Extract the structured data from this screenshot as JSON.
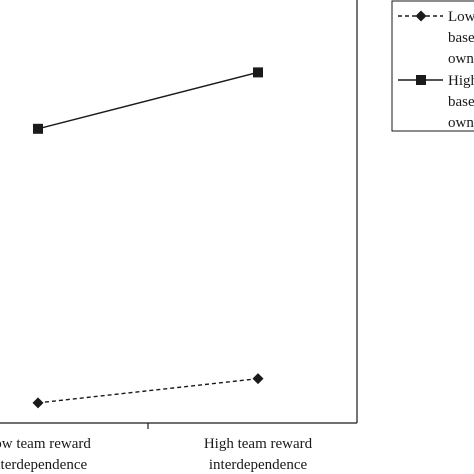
{
  "chart_data": {
    "type": "line",
    "categories": [
      [
        "Low team reward",
        "interdependence"
      ],
      [
        "High team reward",
        "interdependence"
      ]
    ],
    "ylim": [
      0,
      10
    ],
    "series": [
      {
        "name": [
          "Low",
          "based",
          "own"
        ],
        "values": [
          0.5,
          1.1
        ],
        "line_style": "dashed",
        "marker": "diamond",
        "color": "#1a1a1a"
      },
      {
        "name": [
          "High",
          "based",
          "own"
        ],
        "values": [
          7.3,
          8.7
        ],
        "line_style": "solid",
        "marker": "square",
        "color": "#1a1a1a"
      }
    ],
    "legend_position": "top-right",
    "grid": false
  }
}
